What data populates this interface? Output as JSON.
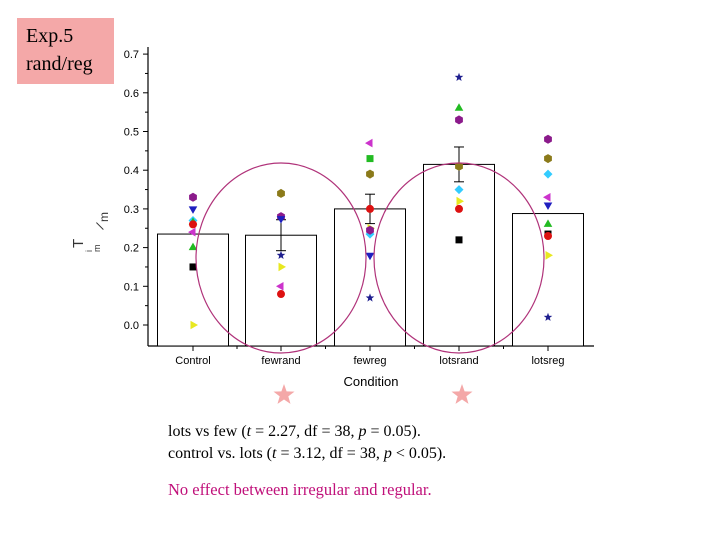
{
  "slide": {
    "exp_label_line1": "Exp.5",
    "exp_label_line2": "rand/reg",
    "stats_line1_prefix": "lots vs few (",
    "stats_line1_t": "t",
    "stats_line1_rest": " = 2.27, df = 38, ",
    "stats_line1_p": "p",
    "stats_line1_end": " = 0.05).",
    "stats_line2_prefix": "control vs. lots (",
    "stats_line2_t": "t",
    "stats_line2_rest": " = 3.12, df = 38, ",
    "stats_line2_p": "p",
    "stats_line2_end": " < 0.05).",
    "conclusion": "No effect between irregular and regular.",
    "colors": {
      "label_bg": "#f4a8a8",
      "circle": "#b0337a",
      "star": "#f4a8a8",
      "conclusion": "#c0107a"
    }
  },
  "chart_data": {
    "type": "bar",
    "title": "",
    "xlabel": "Condition",
    "ylabel": "",
    "categories": [
      "Control",
      "fewrand",
      "fewreg",
      "lotsrand",
      "lotsreg"
    ],
    "values": [
      0.235,
      0.232,
      0.3,
      0.415,
      0.288
    ],
    "errors": [
      0.0,
      0.04,
      0.038,
      0.045,
      0.0
    ],
    "ylim": [
      -0.05,
      0.7
    ],
    "yticks": [
      0.0,
      0.1,
      0.2,
      0.3,
      0.4,
      0.5,
      0.6,
      0.7
    ],
    "ytick_labels": [
      "0.0",
      "0.1",
      "0.2",
      "0.3",
      "0.4",
      "0.5",
      "0.6",
      "0.7"
    ],
    "highlighted_categories": [
      "fewrand",
      "lotsrand"
    ],
    "subject_points": [
      {
        "category": "Control",
        "value": 0.33,
        "marker": "hexagon",
        "color": "#8b1a8b"
      },
      {
        "category": "Control",
        "value": 0.3,
        "marker": "triangle-down",
        "color": "#1f1fbf"
      },
      {
        "category": "Control",
        "value": 0.27,
        "marker": "diamond",
        "color": "#33ccff"
      },
      {
        "category": "Control",
        "value": 0.265,
        "marker": "triangle-up",
        "color": "#22bb22"
      },
      {
        "category": "Control",
        "value": 0.26,
        "marker": "circle",
        "color": "#dd1111"
      },
      {
        "category": "Control",
        "value": 0.24,
        "marker": "triangle-left",
        "color": "#cc33cc"
      },
      {
        "category": "Control",
        "value": 0.2,
        "marker": "triangle-up",
        "color": "#22bb22"
      },
      {
        "category": "Control",
        "value": 0.15,
        "marker": "square",
        "color": "#000000"
      },
      {
        "category": "Control",
        "value": 0.0,
        "marker": "triangle-right",
        "color": "#e8e820"
      },
      {
        "category": "fewrand",
        "value": 0.34,
        "marker": "hexagon",
        "color": "#8b7a1a"
      },
      {
        "category": "fewrand",
        "value": 0.28,
        "marker": "hexagon",
        "color": "#8b1a8b"
      },
      {
        "category": "fewrand",
        "value": 0.275,
        "marker": "triangle-down",
        "color": "#1f1fbf"
      },
      {
        "category": "fewrand",
        "value": 0.18,
        "marker": "star",
        "color": "#1f1f8f"
      },
      {
        "category": "fewrand",
        "value": 0.15,
        "marker": "triangle-right",
        "color": "#e8e820"
      },
      {
        "category": "fewrand",
        "value": 0.1,
        "marker": "triangle-left",
        "color": "#cc33cc"
      },
      {
        "category": "fewrand",
        "value": 0.08,
        "marker": "circle",
        "color": "#dd1111"
      },
      {
        "category": "fewreg",
        "value": 0.47,
        "marker": "triangle-left",
        "color": "#cc33cc"
      },
      {
        "category": "fewreg",
        "value": 0.43,
        "marker": "square",
        "color": "#22bb22"
      },
      {
        "category": "fewreg",
        "value": 0.39,
        "marker": "hexagon",
        "color": "#8b7a1a"
      },
      {
        "category": "fewreg",
        "value": 0.3,
        "marker": "circle",
        "color": "#dd1111"
      },
      {
        "category": "fewreg",
        "value": 0.25,
        "marker": "triangle-right",
        "color": "#e8e820"
      },
      {
        "category": "fewreg",
        "value": 0.235,
        "marker": "diamond",
        "color": "#33ccff"
      },
      {
        "category": "fewreg",
        "value": 0.245,
        "marker": "hexagon",
        "color": "#8b1a8b"
      },
      {
        "category": "fewreg",
        "value": 0.18,
        "marker": "triangle-down",
        "color": "#1f1fbf"
      },
      {
        "category": "fewreg",
        "value": 0.07,
        "marker": "star",
        "color": "#1f1f8f"
      },
      {
        "category": "lotsrand",
        "value": 0.64,
        "marker": "star",
        "color": "#1f1f8f"
      },
      {
        "category": "lotsrand",
        "value": 0.56,
        "marker": "triangle-up",
        "color": "#22bb22"
      },
      {
        "category": "lotsrand",
        "value": 0.53,
        "marker": "hexagon",
        "color": "#8b1a8b"
      },
      {
        "category": "lotsrand",
        "value": 0.41,
        "marker": "hexagon",
        "color": "#8b7a1a"
      },
      {
        "category": "lotsrand",
        "value": 0.35,
        "marker": "diamond",
        "color": "#33ccff"
      },
      {
        "category": "lotsrand",
        "value": 0.32,
        "marker": "triangle-right",
        "color": "#e8e820"
      },
      {
        "category": "lotsrand",
        "value": 0.3,
        "marker": "circle",
        "color": "#dd1111"
      },
      {
        "category": "lotsrand",
        "value": 0.22,
        "marker": "square",
        "color": "#000000"
      },
      {
        "category": "lotsreg",
        "value": 0.48,
        "marker": "hexagon",
        "color": "#8b1a8b"
      },
      {
        "category": "lotsreg",
        "value": 0.43,
        "marker": "hexagon",
        "color": "#8b7a1a"
      },
      {
        "category": "lotsreg",
        "value": 0.39,
        "marker": "diamond",
        "color": "#33ccff"
      },
      {
        "category": "lotsreg",
        "value": 0.33,
        "marker": "triangle-left",
        "color": "#cc33cc"
      },
      {
        "category": "lotsreg",
        "value": 0.31,
        "marker": "triangle-down",
        "color": "#1f1fbf"
      },
      {
        "category": "lotsreg",
        "value": 0.26,
        "marker": "triangle-up",
        "color": "#22bb22"
      },
      {
        "category": "lotsreg",
        "value": 0.235,
        "marker": "square",
        "color": "#000000"
      },
      {
        "category": "lotsreg",
        "value": 0.23,
        "marker": "circle",
        "color": "#dd1111"
      },
      {
        "category": "lotsreg",
        "value": 0.18,
        "marker": "triangle-right",
        "color": "#e8e820"
      },
      {
        "category": "lotsreg",
        "value": 0.02,
        "marker": "star",
        "color": "#1f1f8f"
      }
    ]
  }
}
